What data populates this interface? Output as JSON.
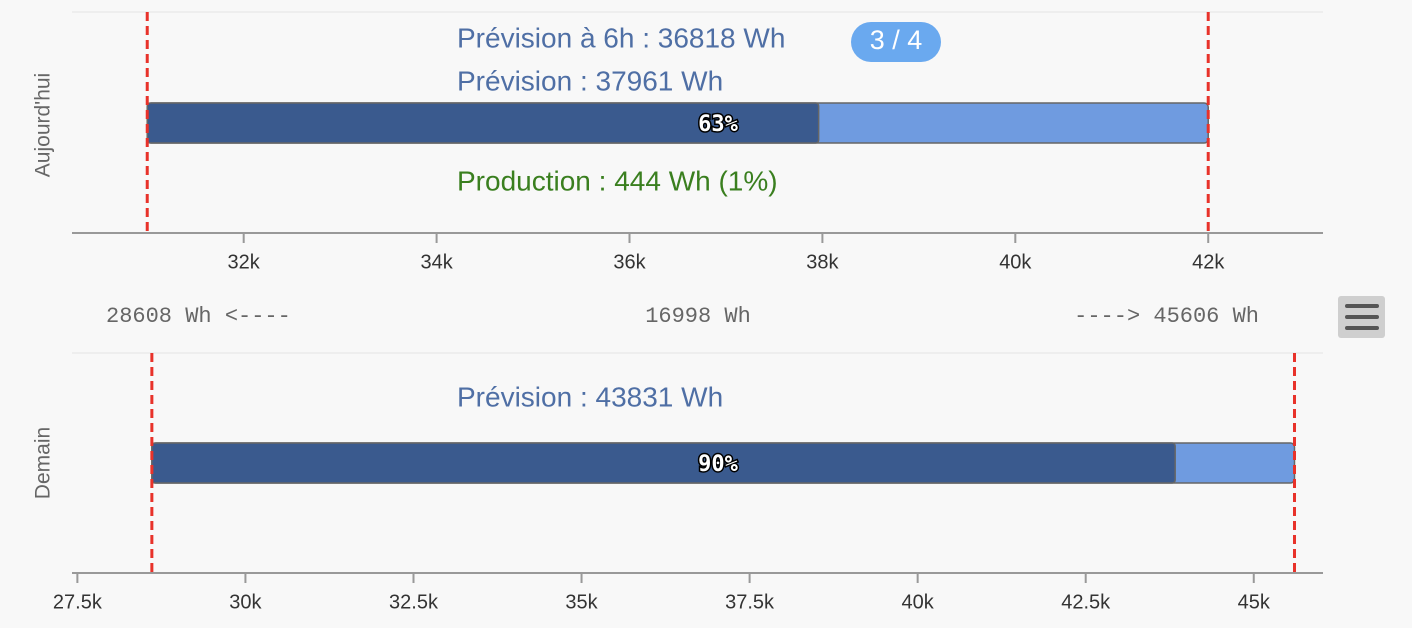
{
  "chart_data": [
    {
      "type": "bar",
      "y_axis_label": "Aujourd'hui",
      "annotations": [
        "Prévision à 6h : 36818 Wh",
        "Prévision : 37961 Wh"
      ],
      "badge": "3 / 4",
      "production_label": "Production : 444 Wh (1%)",
      "value": 37961,
      "bar_text": "63%",
      "plot_lines": [
        31000,
        42000
      ],
      "dark_color": "#3a5a8e",
      "light_color": "#6f9be0",
      "line_color": "#e8322a",
      "xlim": [
        30220,
        43190
      ],
      "xticks": [
        {
          "value": 32000,
          "label": "32k"
        },
        {
          "value": 34000,
          "label": "34k"
        },
        {
          "value": 36000,
          "label": "36k"
        },
        {
          "value": 38000,
          "label": "38k"
        },
        {
          "value": 40000,
          "label": "40k"
        },
        {
          "value": 42000,
          "label": "42k"
        }
      ]
    },
    {
      "type": "bar",
      "y_axis_label": "Demain",
      "annotations": [
        "Prévision : 43831 Wh"
      ],
      "value": 43831,
      "bar_text": "90%",
      "plot_lines": [
        28608,
        45606
      ],
      "dark_color": "#3a5a8e",
      "light_color": "#6f9be0",
      "line_color": "#e8322a",
      "xlim": [
        27420,
        46030
      ],
      "xticks": [
        {
          "value": 27500,
          "label": "27.5k"
        },
        {
          "value": 30000,
          "label": "30k"
        },
        {
          "value": 32500,
          "label": "32.5k"
        },
        {
          "value": 35000,
          "label": "35k"
        },
        {
          "value": 37500,
          "label": "37.5k"
        },
        {
          "value": 40000,
          "label": "40k"
        },
        {
          "value": 42500,
          "label": "42.5k"
        },
        {
          "value": 45000,
          "label": "45k"
        }
      ]
    }
  ],
  "range_texts": {
    "left": "28608 Wh <----",
    "center": "16998 Wh",
    "right": "----> 45606 Wh"
  }
}
